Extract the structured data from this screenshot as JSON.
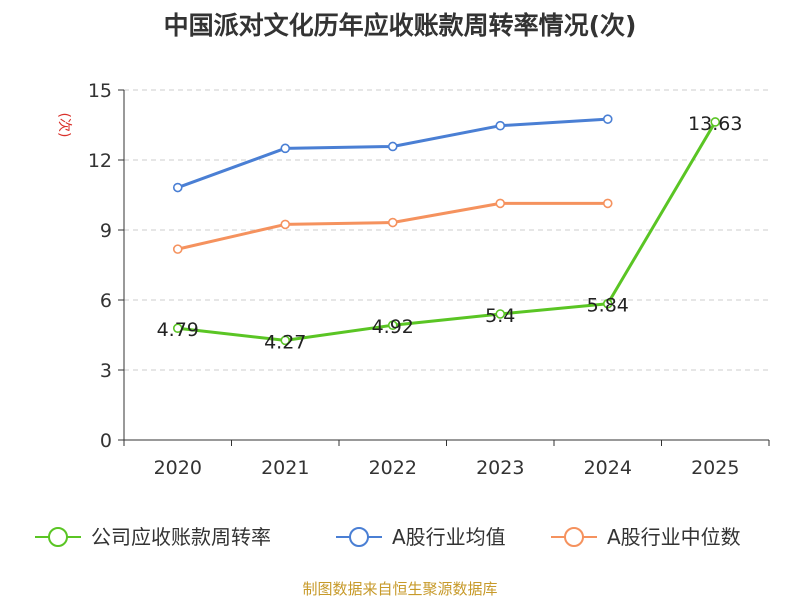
{
  "chart_data": {
    "type": "line",
    "title": "中国派对文化历年应收账款周转率情况(次)",
    "ylabel": "(次)",
    "xlabel": "",
    "categories": [
      "2020",
      "2021",
      "2022",
      "2023",
      "2024",
      "2025"
    ],
    "ylim": [
      0,
      15
    ],
    "yticks": [
      0,
      3,
      6,
      9,
      12,
      15
    ],
    "grid": true,
    "legend_position": "bottom",
    "series": [
      {
        "name": "公司应收账款周转率",
        "values": [
          4.79,
          4.27,
          4.92,
          5.4,
          5.84,
          13.63
        ],
        "labels": [
          "4.79",
          "4.27",
          "4.92",
          "5.4",
          "5.84",
          "13.63"
        ],
        "color": "#5ac524"
      },
      {
        "name": "A股行业均值",
        "values": [
          10.82,
          12.5,
          12.58,
          13.47,
          13.75,
          null
        ],
        "color": "#4a7fd4"
      },
      {
        "name": "A股行业中位数",
        "values": [
          8.18,
          9.24,
          9.32,
          10.14,
          10.14,
          null
        ],
        "color": "#f5925e"
      }
    ]
  },
  "footer": {
    "source": "制图数据来自恒生聚源数据库",
    "source_color": "#c79a2a"
  },
  "colors": {
    "axis": "#333333",
    "grid": "#cccccc",
    "ylabel": "#d9312b"
  }
}
